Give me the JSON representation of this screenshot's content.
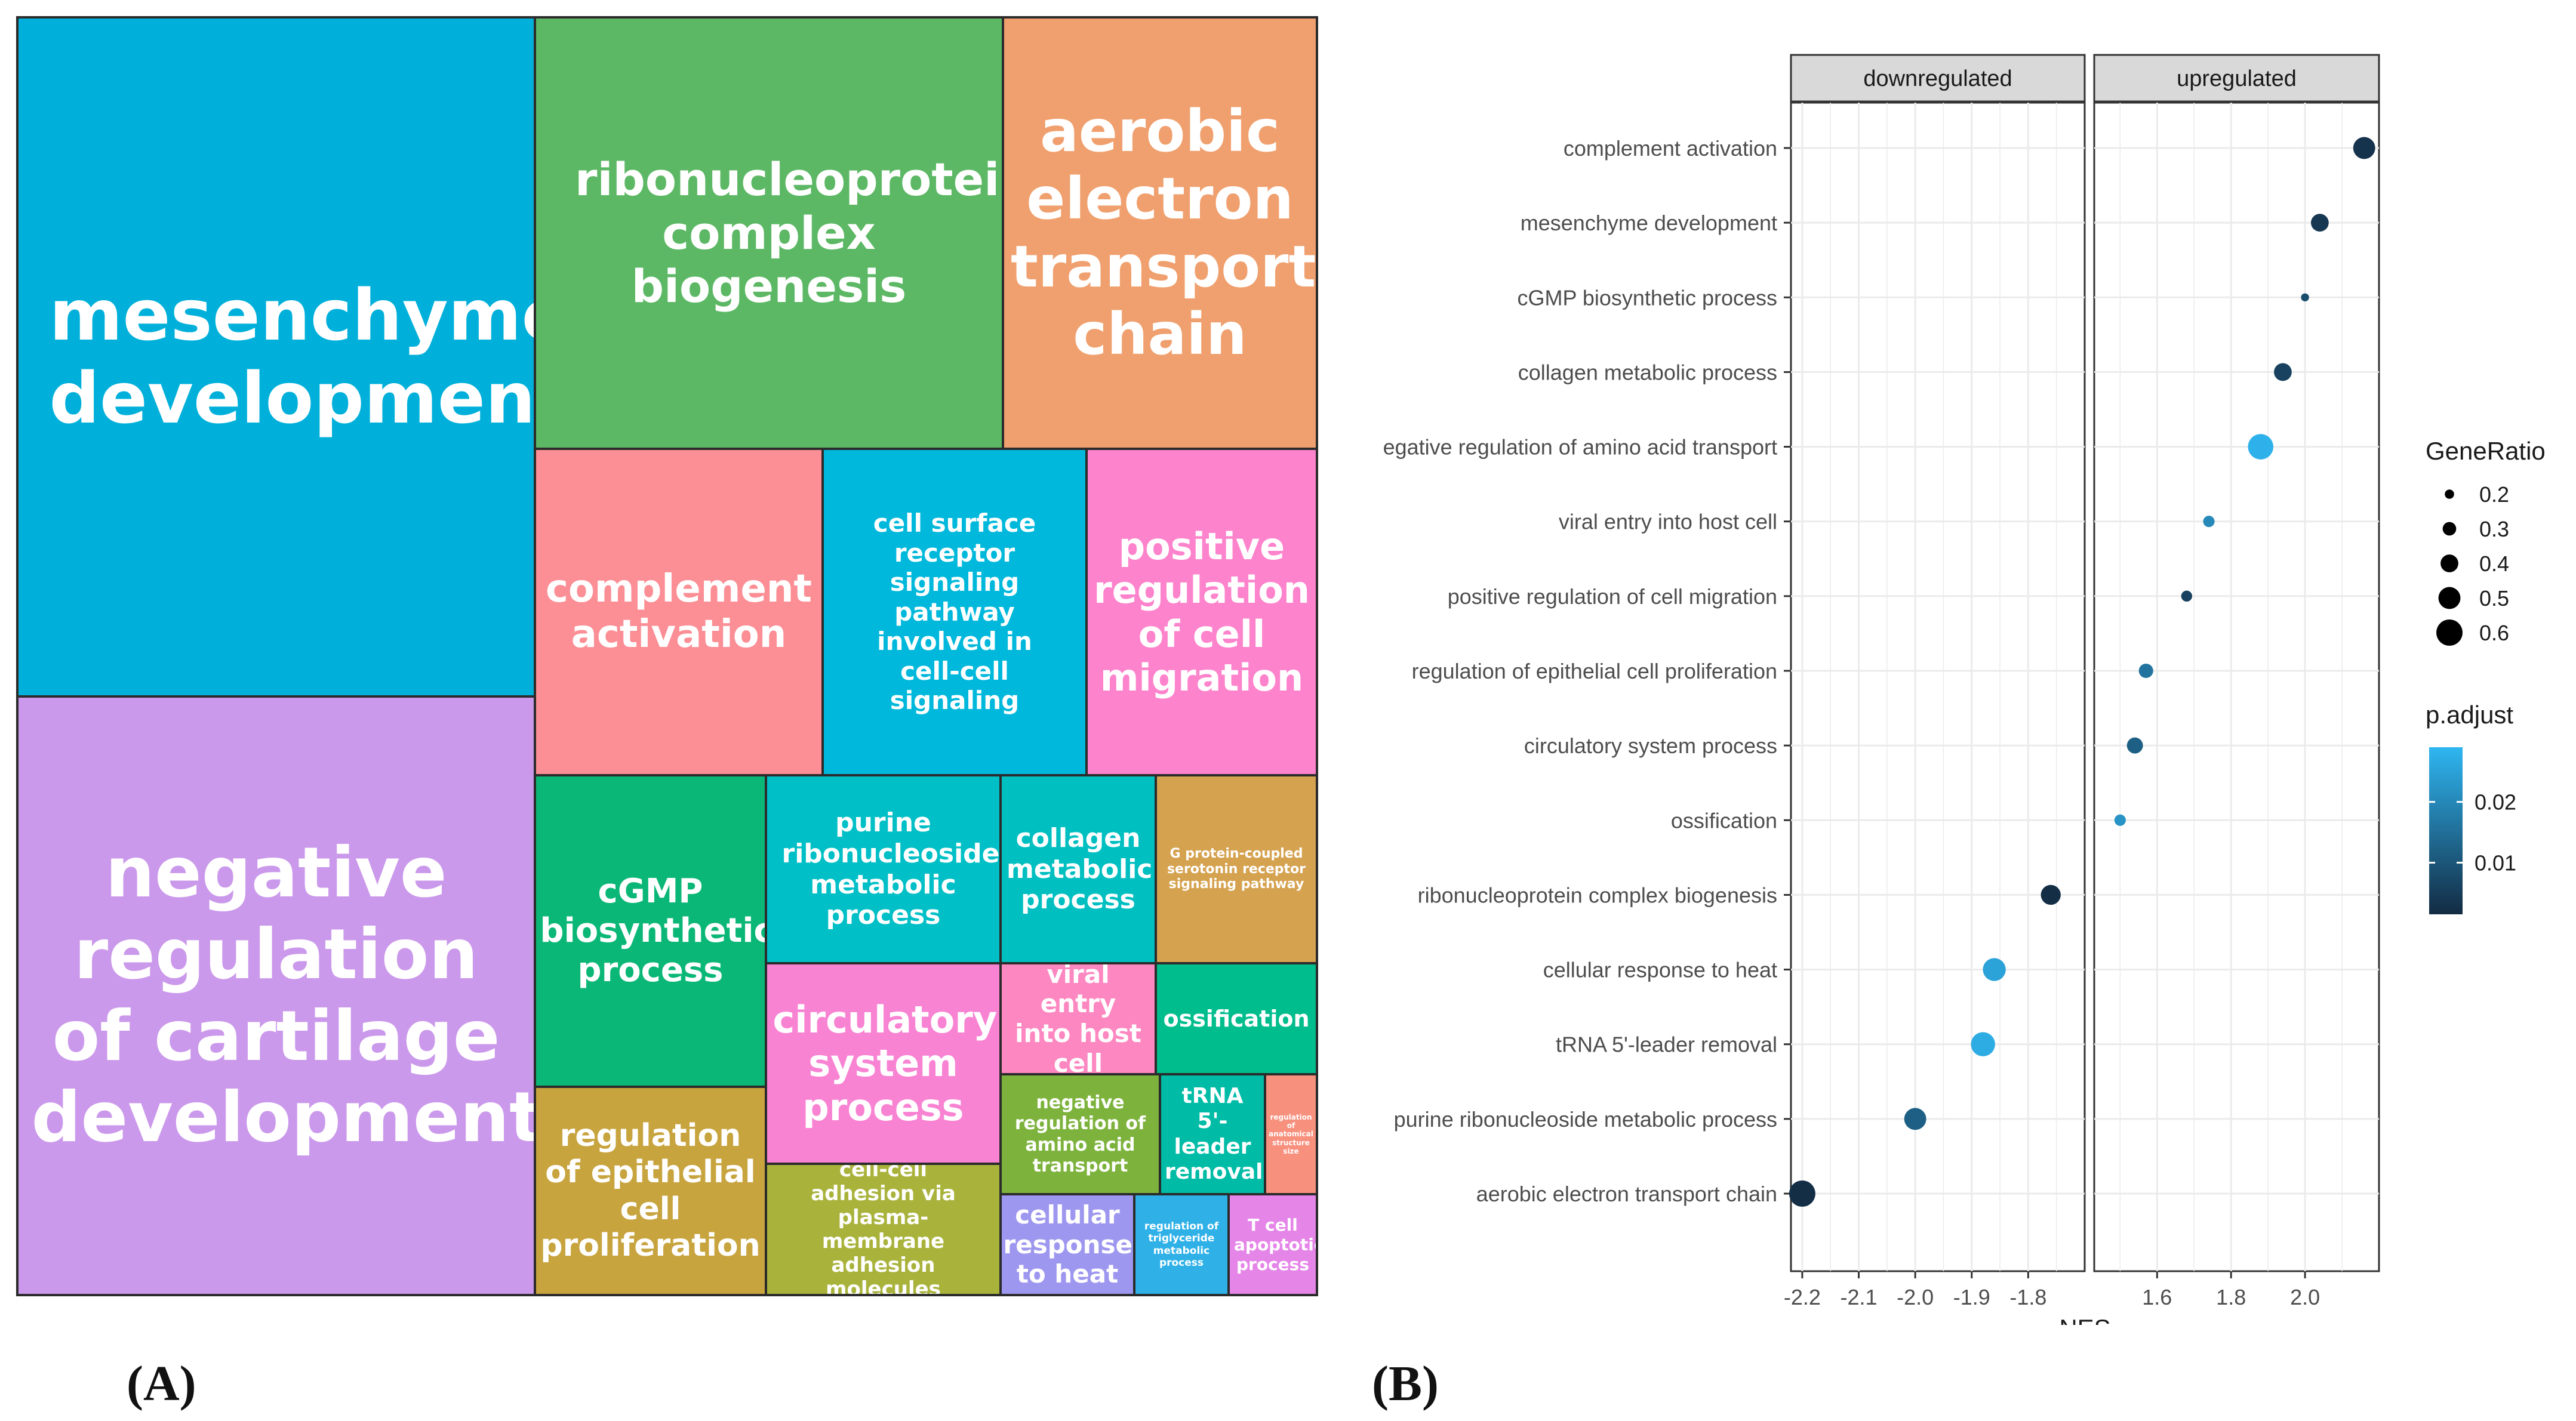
{
  "panels": {
    "a_label": "(A)",
    "b_label": "(B)"
  },
  "chart_data": [
    {
      "type": "treemap",
      "tiles": [
        {
          "label": "mesenchyme development",
          "color": "#00B0DA"
        },
        {
          "label": "negative regulation of cartilage development",
          "color": "#CB99EB"
        },
        {
          "label": "ribonucleoprotein complex biogenesis",
          "color": "#5DB865"
        },
        {
          "label": "aerobic electron transport chain",
          "color": "#F0A06E"
        },
        {
          "label": "complement activation",
          "color": "#FC8E95"
        },
        {
          "label": "cell surface receptor signaling pathway involved in cell-cell signaling",
          "color": "#00B8DB"
        },
        {
          "label": "positive regulation of cell migration",
          "color": "#FD83CC"
        },
        {
          "label": "cGMP biosynthetic process",
          "color": "#0BB777"
        },
        {
          "label": "purine ribonucleoside metabolic process",
          "color": "#00BFC6"
        },
        {
          "label": "collagen metabolic process",
          "color": "#00BFC1"
        },
        {
          "label": "G protein-coupled serotonin receptor signaling pathway",
          "color": "#D5A250"
        },
        {
          "label": "circulatory system process",
          "color": "#F883D3"
        },
        {
          "label": "viral entry into host cell",
          "color": "#FD87C1"
        },
        {
          "label": "ossification",
          "color": "#00BD8D"
        },
        {
          "label": "regulation of epithelial cell proliferation",
          "color": "#C8A43F"
        },
        {
          "label": "cell-cell adhesion via plasma-membrane adhesion molecules",
          "color": "#A9B33C"
        },
        {
          "label": "negative regulation of amino acid transport",
          "color": "#7DB33D"
        },
        {
          "label": "tRNA 5'-leader removal",
          "color": "#00BCA6"
        },
        {
          "label": "regulation of anatomical structure size",
          "color": "#F8907E"
        },
        {
          "label": "cellular response to heat",
          "color": "#9E97EF"
        },
        {
          "label": "regulation of triglyceride metabolic process",
          "color": "#2FB1E8"
        },
        {
          "label": "T cell apoptotic process",
          "color": "#E585E8"
        }
      ]
    },
    {
      "type": "scatter",
      "xlabel": "NES",
      "facets": [
        {
          "name": "downregulated",
          "xlim": [
            -2.22,
            -1.7
          ],
          "ticks": [
            -2.2,
            -2.1,
            -2.0,
            -1.9,
            -1.8
          ],
          "tick_labels": [
            "-2.2",
            "-2.1",
            "-2.0",
            "-1.9",
            "-1.8"
          ]
        },
        {
          "name": "upregulated",
          "xlim": [
            1.43,
            2.2
          ],
          "ticks": [
            1.6,
            1.8,
            2.0
          ],
          "tick_labels": [
            "1.6",
            "1.8",
            "2.0"
          ]
        }
      ],
      "categories": [
        "complement activation",
        "mesenchyme development",
        "cGMP biosynthetic process",
        "collagen metabolic process",
        "egative regulation of amino acid transport",
        "viral entry into host cell",
        "positive regulation of cell migration",
        "regulation of epithelial cell proliferation",
        "circulatory system process",
        "ossification",
        "ribonucleoprotein complex biogenesis",
        "cellular response to heat",
        "tRNA 5'-leader removal",
        "purine ribonucleoside metabolic process",
        "aerobic electron transport chain"
      ],
      "points": [
        {
          "term": "complement activation",
          "facet": "upregulated",
          "nes": 2.16,
          "gene_ratio": 0.5,
          "p_adjust": 0.003
        },
        {
          "term": "mesenchyme development",
          "facet": "upregulated",
          "nes": 2.04,
          "gene_ratio": 0.4,
          "p_adjust": 0.004
        },
        {
          "term": "cGMP biosynthetic process",
          "facet": "upregulated",
          "nes": 2.0,
          "gene_ratio": 0.17,
          "p_adjust": 0.008
        },
        {
          "term": "collagen metabolic process",
          "facet": "upregulated",
          "nes": 1.94,
          "gene_ratio": 0.4,
          "p_adjust": 0.006
        },
        {
          "term": "egative regulation of amino acid transport",
          "facet": "upregulated",
          "nes": 1.88,
          "gene_ratio": 0.58,
          "p_adjust": 0.028
        },
        {
          "term": "viral entry into host cell",
          "facet": "upregulated",
          "nes": 1.74,
          "gene_ratio": 0.25,
          "p_adjust": 0.02
        },
        {
          "term": "positive regulation of cell migration",
          "facet": "upregulated",
          "nes": 1.68,
          "gene_ratio": 0.24,
          "p_adjust": 0.006
        },
        {
          "term": "regulation of epithelial cell proliferation",
          "facet": "upregulated",
          "nes": 1.57,
          "gene_ratio": 0.32,
          "p_adjust": 0.016
        },
        {
          "term": "circulatory system process",
          "facet": "upregulated",
          "nes": 1.54,
          "gene_ratio": 0.36,
          "p_adjust": 0.012
        },
        {
          "term": "ossification",
          "facet": "upregulated",
          "nes": 1.5,
          "gene_ratio": 0.25,
          "p_adjust": 0.022
        },
        {
          "term": "ribonucleoprotein complex biogenesis",
          "facet": "downregulated",
          "nes": -1.76,
          "gene_ratio": 0.45,
          "p_adjust": 0.002
        },
        {
          "term": "cellular response to heat",
          "facet": "downregulated",
          "nes": -1.86,
          "gene_ratio": 0.52,
          "p_adjust": 0.025
        },
        {
          "term": "tRNA 5'-leader removal",
          "facet": "downregulated",
          "nes": -1.88,
          "gene_ratio": 0.55,
          "p_adjust": 0.027
        },
        {
          "term": "purine ribonucleoside metabolic process",
          "facet": "downregulated",
          "nes": -2.0,
          "gene_ratio": 0.5,
          "p_adjust": 0.012
        },
        {
          "term": "aerobic electron transport chain",
          "facet": "downregulated",
          "nes": -2.2,
          "gene_ratio": 0.6,
          "p_adjust": 0.002
        }
      ],
      "legend_size": {
        "title": "GeneRatio",
        "values": [
          0.2,
          0.3,
          0.4,
          0.5,
          0.6
        ],
        "labels": [
          "0.2",
          "0.3",
          "0.4",
          "0.5",
          "0.6"
        ]
      },
      "legend_color": {
        "title": "p.adjust",
        "range": [
          0.0015,
          0.029
        ],
        "values": [
          0.01,
          0.02
        ],
        "labels": [
          "0.01",
          "0.02"
        ],
        "low_color": "#132B43",
        "high_color": "#2FB6F1"
      }
    }
  ]
}
